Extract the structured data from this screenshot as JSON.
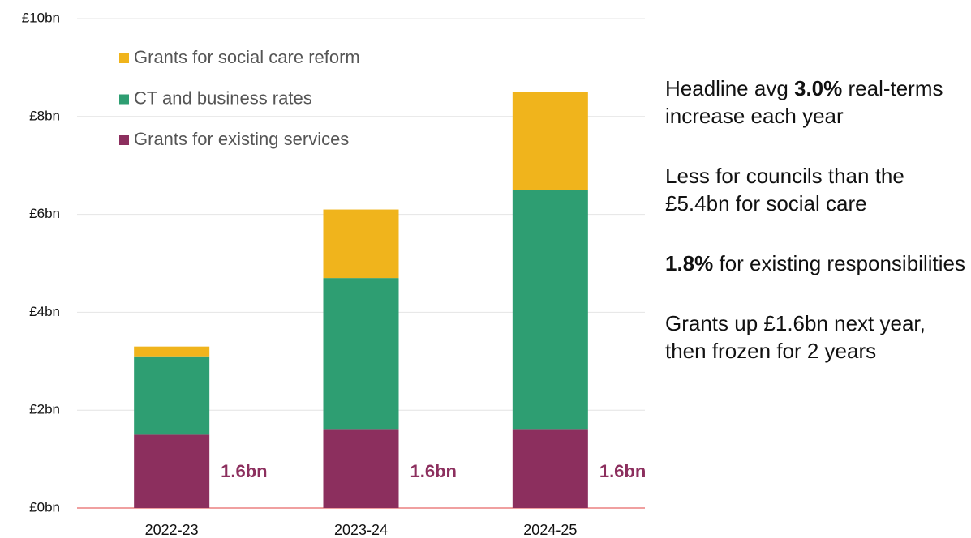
{
  "chart_data": {
    "type": "stacked_bar",
    "categories": [
      "2022-23",
      "2023-24",
      "2024-25"
    ],
    "series": [
      {
        "name": "Grants for existing services",
        "color": "#8c2f5e",
        "values": [
          1.5,
          1.6,
          1.6
        ]
      },
      {
        "name": "CT and business rates",
        "color": "#2e9e72",
        "values": [
          1.6,
          3.1,
          4.9
        ]
      },
      {
        "name": "Grants for social care reform",
        "color": "#f0b41c",
        "values": [
          0.2,
          1.4,
          2.0
        ]
      }
    ],
    "annotations": [
      "1.6bn",
      "1.6bn",
      "1.6bn"
    ],
    "ylim": [
      0,
      10
    ],
    "yticks": [
      {
        "value": 0,
        "label": "£0bn"
      },
      {
        "value": 2,
        "label": "£2bn"
      },
      {
        "value": 4,
        "label": "£4bn"
      },
      {
        "value": 6,
        "label": "£6bn"
      },
      {
        "value": 8,
        "label": "£8bn"
      },
      {
        "value": 10,
        "label": "£10bn"
      }
    ],
    "grid": true
  },
  "notes": [
    [
      "Headline avg ",
      "3.0%",
      " real-terms increase each year"
    ],
    [
      "Less for councils than the £5.4bn for social care"
    ],
    [
      "",
      "1.8%",
      " for existing responsibilities"
    ],
    [
      "Grants up £1.6bn next year, then frozen for 2 years"
    ]
  ]
}
